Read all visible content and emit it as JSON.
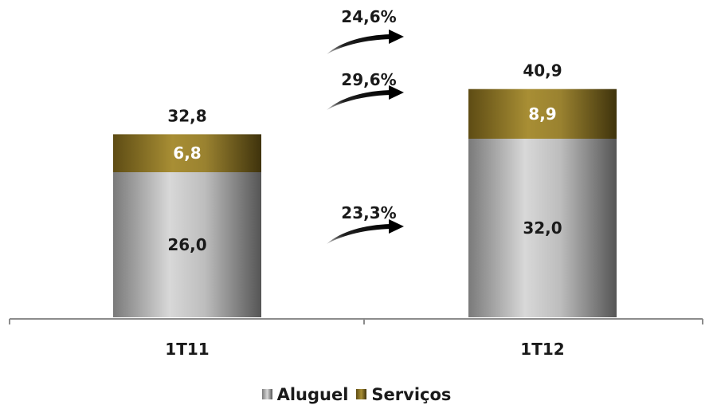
{
  "chart_data": {
    "type": "bar",
    "stacked": true,
    "categories": [
      "1T11",
      "1T12"
    ],
    "series": [
      {
        "name": "Aluguel",
        "values": [
          26.0,
          32.0
        ],
        "labels": [
          "26,0",
          "32,0"
        ],
        "color": "#a8a8a8",
        "label_color": "#1a1a1a"
      },
      {
        "name": "Serviços",
        "values": [
          6.8,
          8.9
        ],
        "labels": [
          "6,8",
          "8,9"
        ],
        "color": "#8b7425",
        "label_color": "#ffffff"
      }
    ],
    "totals": [
      32.8,
      40.9
    ],
    "total_labels": [
      "32,8",
      "40,9"
    ],
    "growth": [
      {
        "label": "24,6%",
        "applies_to": "total"
      },
      {
        "label": "29,6%",
        "applies_to": "Serviços"
      },
      {
        "label": "23,3%",
        "applies_to": "Aluguel"
      }
    ],
    "ylim": [
      0,
      50
    ],
    "grid": false,
    "legend_position": "bottom"
  }
}
